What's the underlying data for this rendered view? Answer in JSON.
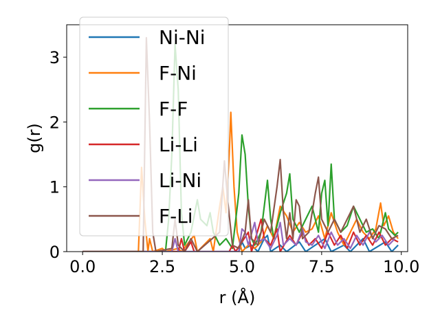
{
  "chart_data": {
    "type": "line",
    "title": "",
    "xlabel": "r (Å)",
    "ylabel": "g(r)",
    "xlim": [
      -0.5,
      10.2
    ],
    "ylim": [
      0,
      3.5
    ],
    "xticks": [
      0.0,
      2.5,
      5.0,
      7.5,
      10.0
    ],
    "xtick_labels": [
      "0.0",
      "2.5",
      "5.0",
      "7.5",
      "10.0"
    ],
    "yticks": [
      0,
      1,
      2,
      3
    ],
    "ytick_labels": [
      "0",
      "1",
      "2",
      "3"
    ],
    "grid": false,
    "legend_position": "top-left",
    "series": [
      {
        "name": "Ni-Ni",
        "color": "#1f77b4",
        "points": [
          [
            0,
            0
          ],
          [
            4.9,
            0
          ],
          [
            5.0,
            0.15
          ],
          [
            5.1,
            0.05
          ],
          [
            5.3,
            0.1
          ],
          [
            5.5,
            0
          ],
          [
            5.7,
            0.2
          ],
          [
            5.8,
            0.25
          ],
          [
            5.9,
            0
          ],
          [
            6.2,
            0.1
          ],
          [
            6.4,
            0
          ],
          [
            6.8,
            0.15
          ],
          [
            7.0,
            0
          ],
          [
            7.6,
            0.2
          ],
          [
            7.8,
            0
          ],
          [
            8.2,
            0.1
          ],
          [
            8.4,
            0
          ],
          [
            8.8,
            0.2
          ],
          [
            9.0,
            0
          ],
          [
            9.5,
            0.15
          ],
          [
            9.7,
            0
          ],
          [
            9.9,
            0.1
          ]
        ]
      },
      {
        "name": "F-Ni",
        "color": "#ff7f0e",
        "points": [
          [
            0,
            0
          ],
          [
            1.75,
            0
          ],
          [
            1.85,
            1.3
          ],
          [
            1.95,
            0.5
          ],
          [
            2.05,
            0
          ],
          [
            2.1,
            0.2
          ],
          [
            2.2,
            0
          ],
          [
            2.5,
            0.05
          ],
          [
            2.6,
            0
          ],
          [
            3.0,
            0.05
          ],
          [
            3.1,
            0
          ],
          [
            3.5,
            0.25
          ],
          [
            3.6,
            0
          ],
          [
            4.0,
            0.2
          ],
          [
            4.1,
            0
          ],
          [
            4.3,
            0.7
          ],
          [
            4.4,
            1.0
          ],
          [
            4.5,
            0.6
          ],
          [
            4.6,
            1.5
          ],
          [
            4.65,
            2.15
          ],
          [
            4.75,
            1.0
          ],
          [
            4.85,
            0.3
          ],
          [
            5.0,
            0
          ],
          [
            5.2,
            0.1
          ],
          [
            5.4,
            0.05
          ],
          [
            5.6,
            0.15
          ],
          [
            5.8,
            0.4
          ],
          [
            6.0,
            0.2
          ],
          [
            6.2,
            0.7
          ],
          [
            6.4,
            0.55
          ],
          [
            6.6,
            0.3
          ],
          [
            6.8,
            0.45
          ],
          [
            7.0,
            0.3
          ],
          [
            7.2,
            0.35
          ],
          [
            7.4,
            0.55
          ],
          [
            7.6,
            0.2
          ],
          [
            7.8,
            0.6
          ],
          [
            8.0,
            0.3
          ],
          [
            8.2,
            0.1
          ],
          [
            8.4,
            0.3
          ],
          [
            8.6,
            0.5
          ],
          [
            8.8,
            0.3
          ],
          [
            9.0,
            0.2
          ],
          [
            9.2,
            0.35
          ],
          [
            9.35,
            0.75
          ],
          [
            9.45,
            0.4
          ],
          [
            9.6,
            0.55
          ],
          [
            9.75,
            0.3
          ],
          [
            9.9,
            0.2
          ]
        ]
      },
      {
        "name": "F-F",
        "color": "#2ca02c",
        "points": [
          [
            0,
            0
          ],
          [
            2.6,
            0
          ],
          [
            2.7,
            0.5
          ],
          [
            2.8,
            1.5
          ],
          [
            2.9,
            3.2
          ],
          [
            3.0,
            2.5
          ],
          [
            3.1,
            0.6
          ],
          [
            3.2,
            0.1
          ],
          [
            3.4,
            0.3
          ],
          [
            3.6,
            0.8
          ],
          [
            3.7,
            0.5
          ],
          [
            3.9,
            0.4
          ],
          [
            4.0,
            0.6
          ],
          [
            4.1,
            0.3
          ],
          [
            4.3,
            0.1
          ],
          [
            4.5,
            0.2
          ],
          [
            4.7,
            0.05
          ],
          [
            4.9,
            0.9
          ],
          [
            5.0,
            1.8
          ],
          [
            5.1,
            1.5
          ],
          [
            5.2,
            0.7
          ],
          [
            5.3,
            0.2
          ],
          [
            5.4,
            0.1
          ],
          [
            5.6,
            0.3
          ],
          [
            5.8,
            1.1
          ],
          [
            5.9,
            0.5
          ],
          [
            6.0,
            0.2
          ],
          [
            6.2,
            0.6
          ],
          [
            6.4,
            0.9
          ],
          [
            6.5,
            1.2
          ],
          [
            6.6,
            0.5
          ],
          [
            6.8,
            0.3
          ],
          [
            7.0,
            0.5
          ],
          [
            7.2,
            0.7
          ],
          [
            7.4,
            0.3
          ],
          [
            7.5,
            0.9
          ],
          [
            7.6,
            1.1
          ],
          [
            7.7,
            0.4
          ],
          [
            7.8,
            1.35
          ],
          [
            7.9,
            0.5
          ],
          [
            8.1,
            0.3
          ],
          [
            8.3,
            0.4
          ],
          [
            8.5,
            0.7
          ],
          [
            8.7,
            0.5
          ],
          [
            8.9,
            0.3
          ],
          [
            9.1,
            0.35
          ],
          [
            9.3,
            0.2
          ],
          [
            9.5,
            0.6
          ],
          [
            9.6,
            0.35
          ],
          [
            9.8,
            0.25
          ],
          [
            9.9,
            0.3
          ]
        ]
      },
      {
        "name": "Li-Li",
        "color": "#d62728",
        "points": [
          [
            0,
            0
          ],
          [
            3.0,
            0
          ],
          [
            3.1,
            0.2
          ],
          [
            3.2,
            0
          ],
          [
            3.4,
            0.15
          ],
          [
            3.5,
            0
          ],
          [
            4.6,
            0
          ],
          [
            4.7,
            0.1
          ],
          [
            4.8,
            0
          ],
          [
            5.2,
            0.3
          ],
          [
            5.3,
            0
          ],
          [
            5.6,
            0.5
          ],
          [
            5.7,
            0.2
          ],
          [
            5.9,
            0.1
          ],
          [
            6.1,
            0.35
          ],
          [
            6.2,
            0
          ],
          [
            6.5,
            0.25
          ],
          [
            6.7,
            0.1
          ],
          [
            6.9,
            0.3
          ],
          [
            7.1,
            0.1
          ],
          [
            7.3,
            0.2
          ],
          [
            7.5,
            0.05
          ],
          [
            7.7,
            0.3
          ],
          [
            7.9,
            0.1
          ],
          [
            8.1,
            0.25
          ],
          [
            8.3,
            0.05
          ],
          [
            8.5,
            0.3
          ],
          [
            8.7,
            0.1
          ],
          [
            8.9,
            0.25
          ],
          [
            9.1,
            0.1
          ],
          [
            9.3,
            0.3
          ],
          [
            9.5,
            0.1
          ],
          [
            9.7,
            0.2
          ],
          [
            9.9,
            0.15
          ]
        ]
      },
      {
        "name": "Li-Ni",
        "color": "#9467bd",
        "points": [
          [
            0,
            0
          ],
          [
            2.8,
            0
          ],
          [
            2.9,
            0.2
          ],
          [
            3.0,
            0
          ],
          [
            4.9,
            0
          ],
          [
            5.0,
            0.35
          ],
          [
            5.1,
            0.3
          ],
          [
            5.2,
            0.1
          ],
          [
            5.4,
            0.45
          ],
          [
            5.5,
            0.15
          ],
          [
            5.7,
            0.2
          ],
          [
            5.9,
            0.05
          ],
          [
            6.1,
            0.25
          ],
          [
            6.2,
            0.45
          ],
          [
            6.3,
            0.1
          ],
          [
            6.5,
            0.2
          ],
          [
            6.7,
            0.1
          ],
          [
            6.9,
            0.35
          ],
          [
            7.0,
            0.15
          ],
          [
            7.2,
            0.1
          ],
          [
            7.4,
            0.25
          ],
          [
            7.6,
            0.05
          ],
          [
            7.8,
            0.3
          ],
          [
            8.0,
            0.1
          ],
          [
            8.2,
            0.2
          ],
          [
            8.4,
            0.05
          ],
          [
            8.6,
            0.25
          ],
          [
            8.8,
            0.1
          ],
          [
            9.0,
            0.3
          ],
          [
            9.2,
            0.15
          ],
          [
            9.4,
            0.25
          ],
          [
            9.6,
            0.1
          ],
          [
            9.8,
            0.2
          ]
        ]
      },
      {
        "name": "F-Li",
        "color": "#8c564b",
        "points": [
          [
            0,
            0
          ],
          [
            1.9,
            0
          ],
          [
            2.0,
            3.3
          ],
          [
            2.1,
            2.0
          ],
          [
            2.2,
            0.3
          ],
          [
            2.3,
            0
          ],
          [
            2.8,
            0.05
          ],
          [
            2.9,
            0.5
          ],
          [
            3.0,
            0.1
          ],
          [
            3.2,
            0
          ],
          [
            3.4,
            0.2
          ],
          [
            3.6,
            0
          ],
          [
            4.3,
            0.3
          ],
          [
            4.45,
            1.4
          ],
          [
            4.55,
            0.8
          ],
          [
            4.7,
            0.1
          ],
          [
            4.9,
            0.05
          ],
          [
            5.1,
            0.3
          ],
          [
            5.2,
            0.8
          ],
          [
            5.3,
            0.2
          ],
          [
            5.5,
            0.1
          ],
          [
            5.7,
            0.5
          ],
          [
            5.9,
            0.3
          ],
          [
            6.1,
            1.0
          ],
          [
            6.2,
            1.42
          ],
          [
            6.3,
            0.6
          ],
          [
            6.4,
            0.2
          ],
          [
            6.5,
            0.6
          ],
          [
            6.6,
            0.2
          ],
          [
            6.7,
            0.8
          ],
          [
            6.8,
            0.7
          ],
          [
            6.9,
            0.2
          ],
          [
            7.1,
            0.3
          ],
          [
            7.3,
            0.9
          ],
          [
            7.4,
            1.15
          ],
          [
            7.5,
            0.5
          ],
          [
            7.7,
            0.3
          ],
          [
            7.9,
            0.5
          ],
          [
            8.1,
            0.3
          ],
          [
            8.3,
            0.5
          ],
          [
            8.5,
            0.7
          ],
          [
            8.7,
            0.3
          ],
          [
            8.9,
            0.5
          ],
          [
            9.1,
            0.2
          ],
          [
            9.3,
            0.4
          ],
          [
            9.5,
            0.35
          ],
          [
            9.7,
            0.2
          ],
          [
            9.9,
            0.25
          ]
        ]
      }
    ]
  }
}
